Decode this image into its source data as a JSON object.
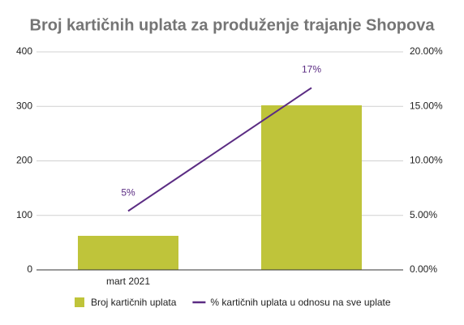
{
  "chart_data": {
    "type": "combo",
    "title": "Broj kartičnih uplata za produženje trajanje Shopova",
    "categories": [
      "mart 2021",
      null
    ],
    "series": [
      {
        "name": "Broj kartičnih uplata",
        "type": "bar",
        "color": "#bfc43a",
        "values": [
          62.5,
          302
        ]
      },
      {
        "name": "% kartičnih uplata u odnosu na sve uplate",
        "type": "line",
        "axis": "y2",
        "color": "#5b2c83",
        "values": [
          5.4,
          16.7
        ],
        "value_labels": [
          "5%",
          "17%"
        ]
      }
    ],
    "ylim": [
      0,
      400
    ],
    "yticks": [
      0,
      100,
      200,
      300,
      400
    ],
    "y2lim": [
      0,
      20
    ],
    "y2ticks": [
      {
        "value": 0,
        "label": "0.00%"
      },
      {
        "value": 5,
        "label": "5.00%"
      },
      {
        "value": 10,
        "label": "10.00%"
      },
      {
        "value": 15,
        "label": "15.00%"
      },
      {
        "value": 20,
        "label": "20.00%"
      }
    ],
    "grid": true,
    "legend": "bottom"
  }
}
